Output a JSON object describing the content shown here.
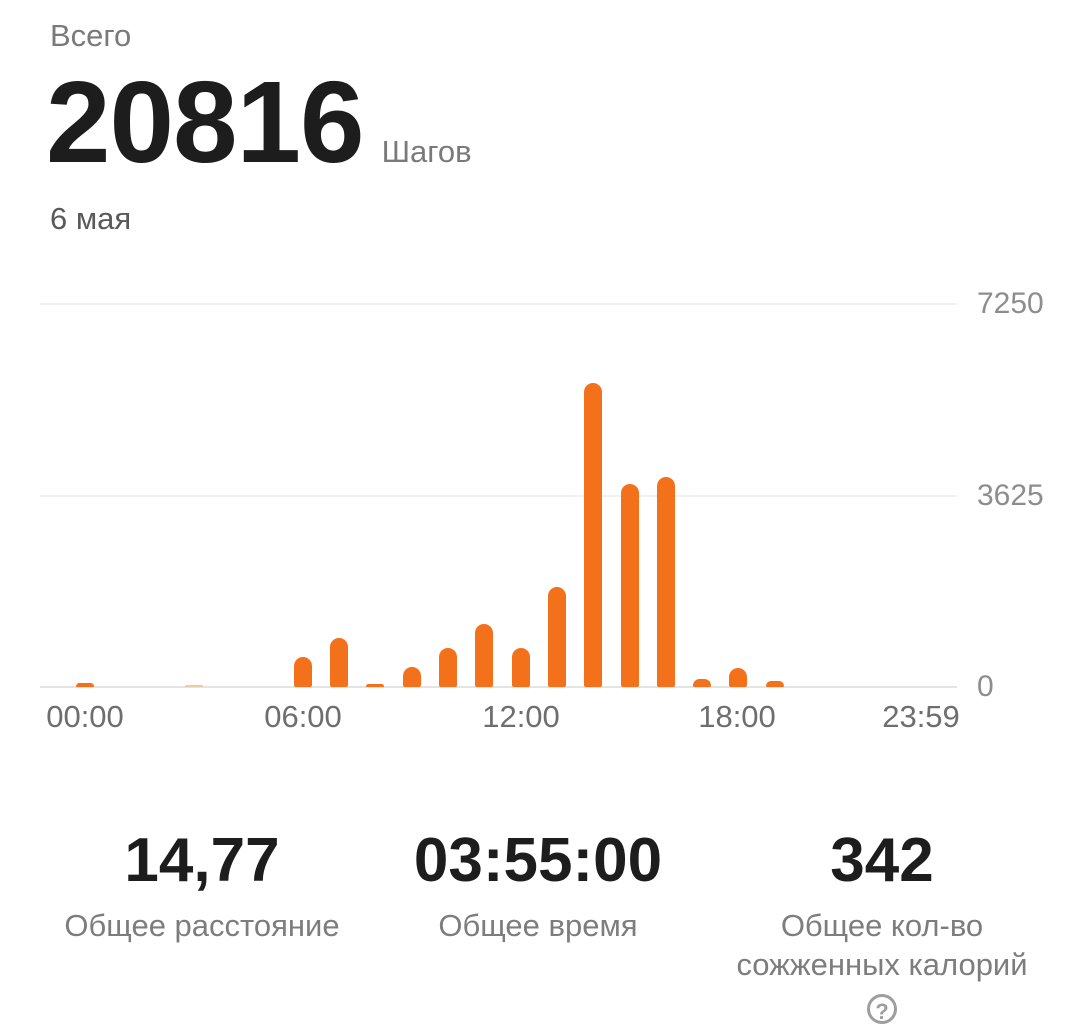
{
  "header": {
    "title": "Всего",
    "total_steps": "20816",
    "unit": "Шагов",
    "date": "6 мая"
  },
  "chart_data": {
    "type": "bar",
    "title": "",
    "xlabel": "",
    "ylabel": "",
    "categories": [
      "00:00",
      "01:00",
      "02:00",
      "03:00",
      "04:00",
      "05:00",
      "06:00",
      "07:00",
      "08:00",
      "09:00",
      "10:00",
      "11:00",
      "12:00",
      "13:00",
      "14:00",
      "15:00",
      "16:00",
      "17:00",
      "18:00",
      "19:00",
      "20:00",
      "21:00",
      "22:00",
      "23:00"
    ],
    "values": [
      70,
      0,
      0,
      40,
      0,
      0,
      560,
      920,
      60,
      380,
      740,
      1200,
      740,
      1900,
      5750,
      3850,
      3980,
      150,
      366,
      110,
      0,
      0,
      0,
      0
    ],
    "light_hours": [
      3
    ],
    "ylim": [
      0,
      7250
    ],
    "yticks": [
      7250,
      3625,
      0
    ],
    "ytick_labels": [
      "7250",
      "3625",
      "0"
    ],
    "xtick_labels": [
      "00:00",
      "06:00",
      "12:00",
      "18:00",
      "23:59"
    ],
    "grid": "horizontal",
    "legend": "none",
    "bar_color": "#F4711C",
    "light_bar_color": "#E9CDA2"
  },
  "stats": [
    {
      "value": "14,77",
      "label": "Общее расстояние"
    },
    {
      "value": "03:55:00",
      "label": "Общее время"
    },
    {
      "value": "342",
      "label": "Общее кол-во сожженных калорий"
    }
  ],
  "icons": {
    "help": "?"
  }
}
